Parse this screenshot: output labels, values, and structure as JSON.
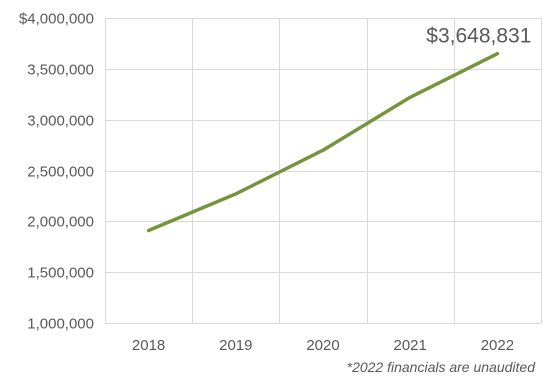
{
  "chart_data": {
    "type": "line",
    "categories": [
      "2018",
      "2019",
      "2020",
      "2021",
      "2022"
    ],
    "series": [
      {
        "values": [
          1910000,
          2270000,
          2700000,
          3220000,
          3648831
        ],
        "color": "#77933C"
      }
    ],
    "ylim": [
      1000000,
      4000000
    ],
    "y_ticks": [
      1000000,
      1500000,
      2000000,
      2500000,
      3000000,
      3500000,
      4000000
    ],
    "y_tick_labels": [
      "1,000,000",
      "1,500,000",
      "2,000,000",
      "2,500,000",
      "3,000,000",
      "3,500,000",
      "$4,000,000"
    ],
    "grid": true,
    "data_label": "$3,648,831",
    "footnote": "*2022 financials are unaudited",
    "colors": {
      "line": "#77933C",
      "grid": "#d9d9d9",
      "text": "#595959"
    }
  }
}
